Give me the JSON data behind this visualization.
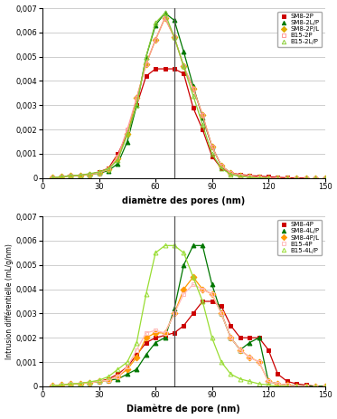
{
  "top": {
    "xlabel": "diamètre des pores (nm)",
    "vline_x": 70,
    "ylim": [
      0,
      0.007
    ],
    "xlim": [
      0,
      150
    ],
    "yticks": [
      0,
      0.001,
      0.002,
      0.003,
      0.004,
      0.005,
      0.006,
      0.007
    ],
    "xticks": [
      0,
      30,
      60,
      90,
      120,
      150
    ],
    "series": [
      {
        "label": "SM8-2P",
        "color": "#cc0000",
        "marker": "s",
        "markersize": 3.5,
        "fillstyle": "full",
        "pts_x": [
          5,
          10,
          15,
          20,
          25,
          30,
          35,
          40,
          45,
          50,
          55,
          60,
          65,
          70,
          75,
          80,
          85,
          90,
          95,
          100,
          105,
          110,
          115,
          120,
          125,
          130,
          135,
          140,
          145,
          150
        ],
        "pts_y": [
          2e-05,
          5e-05,
          0.0001,
          0.00012,
          0.00015,
          0.00025,
          0.0004,
          0.001,
          0.0018,
          0.003,
          0.0042,
          0.0045,
          0.0045,
          0.0045,
          0.0043,
          0.0029,
          0.002,
          0.0009,
          0.0004,
          0.0002,
          0.00015,
          0.0001,
          8e-05,
          5e-05,
          3e-05,
          1e-05,
          0,
          0,
          0,
          0
        ]
      },
      {
        "label": "SM8-2L/P",
        "color": "#007700",
        "marker": "^",
        "markersize": 3.5,
        "fillstyle": "full",
        "pts_x": [
          5,
          10,
          15,
          20,
          25,
          30,
          35,
          40,
          45,
          50,
          55,
          60,
          65,
          70,
          75,
          80,
          85,
          90,
          95,
          100,
          105,
          110,
          115,
          120,
          125,
          130,
          135,
          140,
          145,
          150
        ],
        "pts_y": [
          2e-05,
          5e-05,
          0.0001,
          0.00012,
          0.00015,
          0.0002,
          0.0003,
          0.0006,
          0.0015,
          0.003,
          0.005,
          0.0063,
          0.0068,
          0.0065,
          0.0052,
          0.0038,
          0.0025,
          0.0013,
          0.0005,
          0.0002,
          0.0001,
          5e-05,
          2e-05,
          0,
          0,
          0,
          0,
          0,
          0,
          0
        ]
      },
      {
        "label": "SM8-2P/L",
        "color": "#ddaa00",
        "marker": "D",
        "markersize": 3.5,
        "fillstyle": "full",
        "pts_x": [
          5,
          10,
          15,
          20,
          25,
          30,
          35,
          40,
          45,
          50,
          55,
          60,
          65,
          70,
          75,
          80,
          85,
          90,
          95,
          100,
          105,
          110,
          115,
          120,
          125,
          130,
          135,
          140,
          145,
          150
        ],
        "pts_y": [
          2e-05,
          5e-05,
          0.0001,
          0.00012,
          0.00015,
          0.00022,
          0.00035,
          0.0008,
          0.0018,
          0.0033,
          0.0047,
          0.0057,
          0.0066,
          0.0058,
          0.0046,
          0.0037,
          0.0026,
          0.0013,
          0.0005,
          0.0002,
          0.00012,
          7e-05,
          3e-05,
          0,
          0,
          0,
          0,
          0,
          0,
          0
        ]
      },
      {
        "label": "B15-2P",
        "color": "#ff9999",
        "marker": "s",
        "markersize": 3.5,
        "fillstyle": "none",
        "pts_x": [
          5,
          10,
          15,
          20,
          25,
          30,
          35,
          40,
          45,
          50,
          55,
          60,
          65,
          70,
          75,
          80,
          85,
          90,
          95,
          100,
          105,
          110,
          115,
          120,
          125,
          130,
          135,
          140,
          145,
          150
        ],
        "pts_y": [
          2e-05,
          5e-05,
          0.0001,
          0.00012,
          0.00015,
          0.00022,
          0.00035,
          0.0009,
          0.002,
          0.0033,
          0.0047,
          0.0057,
          0.0066,
          0.0058,
          0.0046,
          0.0037,
          0.0026,
          0.0013,
          0.0005,
          0.0002,
          0.00012,
          7e-05,
          3e-05,
          0,
          0,
          0,
          0,
          0,
          0,
          0
        ]
      },
      {
        "label": "B15-2L/P",
        "color": "#88cc33",
        "marker": "^",
        "markersize": 3.5,
        "fillstyle": "none",
        "pts_x": [
          5,
          10,
          15,
          20,
          25,
          30,
          35,
          40,
          45,
          50,
          55,
          60,
          65,
          70,
          75,
          80,
          85,
          90,
          95,
          100,
          105,
          110,
          115,
          120,
          125,
          130,
          135,
          140,
          145,
          150
        ],
        "pts_y": [
          2e-05,
          5e-05,
          0.0001,
          0.00012,
          0.00018,
          0.00025,
          0.00038,
          0.00075,
          0.0018,
          0.003,
          0.005,
          0.0064,
          0.0068,
          0.0058,
          0.0046,
          0.0034,
          0.0022,
          0.001,
          0.0004,
          0.00015,
          7e-05,
          3e-05,
          0,
          0,
          0,
          0,
          0,
          0,
          0,
          0
        ]
      }
    ]
  },
  "bottom": {
    "xlabel": "Diamètre de pore (nm)",
    "ylabel": "Intrusion différentielle (mL/g/nm)",
    "vline_x": 70,
    "ylim": [
      0,
      0.007
    ],
    "xlim": [
      0,
      150
    ],
    "yticks": [
      0,
      0.001,
      0.002,
      0.003,
      0.004,
      0.005,
      0.006,
      0.007
    ],
    "xticks": [
      0,
      30,
      60,
      90,
      120,
      150
    ],
    "series": [
      {
        "label": "SM8-4P",
        "color": "#cc0000",
        "marker": "s",
        "markersize": 3.5,
        "fillstyle": "full",
        "pts_x": [
          5,
          10,
          15,
          20,
          25,
          30,
          35,
          40,
          45,
          50,
          55,
          60,
          65,
          70,
          75,
          80,
          85,
          90,
          95,
          100,
          105,
          110,
          115,
          120,
          125,
          130,
          135,
          140,
          145,
          150
        ],
        "pts_y": [
          2e-05,
          5e-05,
          0.0001,
          0.00012,
          0.00015,
          0.0002,
          0.0003,
          0.0005,
          0.0008,
          0.0013,
          0.0018,
          0.002,
          0.0021,
          0.0022,
          0.0025,
          0.003,
          0.0035,
          0.0035,
          0.0033,
          0.0025,
          0.002,
          0.002,
          0.002,
          0.0015,
          0.0005,
          0.0002,
          0.0001,
          5e-05,
          0,
          0
        ]
      },
      {
        "label": "SM8-4L/P",
        "color": "#007700",
        "marker": "^",
        "markersize": 3.5,
        "fillstyle": "full",
        "pts_x": [
          5,
          10,
          15,
          20,
          25,
          30,
          35,
          40,
          45,
          50,
          55,
          60,
          65,
          70,
          75,
          80,
          85,
          90,
          95,
          100,
          105,
          110,
          115,
          120,
          125,
          130,
          135,
          140,
          145,
          150
        ],
        "pts_y": [
          2e-05,
          5e-05,
          0.0001,
          0.00012,
          0.00015,
          0.0002,
          0.00025,
          0.0003,
          0.0005,
          0.0007,
          0.0013,
          0.0018,
          0.002,
          0.0032,
          0.005,
          0.0058,
          0.0058,
          0.0042,
          0.003,
          0.002,
          0.0015,
          0.0018,
          0.002,
          0.0002,
          0.0001,
          5e-05,
          2e-05,
          1e-05,
          0,
          0
        ]
      },
      {
        "label": "SM8-4P/L",
        "color": "#ff9900",
        "marker": "D",
        "markersize": 3.5,
        "fillstyle": "full",
        "pts_x": [
          5,
          10,
          15,
          20,
          25,
          30,
          35,
          40,
          45,
          50,
          55,
          60,
          65,
          70,
          75,
          80,
          85,
          90,
          95,
          100,
          105,
          110,
          115,
          120,
          125,
          130,
          135,
          140,
          145,
          150
        ],
        "pts_y": [
          2e-05,
          5e-05,
          0.0001,
          0.00012,
          0.00015,
          0.0002,
          0.00025,
          0.0004,
          0.0007,
          0.0012,
          0.002,
          0.0022,
          0.0022,
          0.003,
          0.004,
          0.0045,
          0.004,
          0.0038,
          0.003,
          0.002,
          0.0015,
          0.0012,
          0.001,
          0.0002,
          0.0001,
          5e-05,
          0,
          0,
          0,
          0
        ]
      },
      {
        "label": "B15-4P",
        "color": "#ffbbbb",
        "marker": "s",
        "markersize": 3.5,
        "fillstyle": "none",
        "pts_x": [
          5,
          10,
          15,
          20,
          25,
          30,
          35,
          40,
          45,
          50,
          55,
          60,
          65,
          70,
          75,
          80,
          85,
          90,
          95,
          100,
          105,
          110,
          115,
          120,
          125,
          130,
          135,
          140,
          145,
          150
        ],
        "pts_y": [
          2e-05,
          5e-05,
          0.0001,
          0.00012,
          0.00015,
          0.0002,
          0.00025,
          0.0004,
          0.0008,
          0.0015,
          0.0022,
          0.0023,
          0.0022,
          0.003,
          0.0038,
          0.0042,
          0.004,
          0.0038,
          0.003,
          0.002,
          0.0015,
          0.0012,
          0.001,
          0.0002,
          0.0001,
          5e-05,
          0,
          0,
          0,
          0
        ]
      },
      {
        "label": "B15-4L/P",
        "color": "#99dd33",
        "marker": "^",
        "markersize": 3.5,
        "fillstyle": "none",
        "pts_x": [
          5,
          10,
          15,
          20,
          25,
          30,
          35,
          40,
          45,
          50,
          55,
          60,
          65,
          70,
          75,
          80,
          85,
          90,
          95,
          100,
          105,
          110,
          115,
          120,
          125,
          130,
          135,
          140,
          145,
          150
        ],
        "pts_y": [
          2e-05,
          5e-05,
          0.0001,
          0.00012,
          0.00018,
          0.00025,
          0.0004,
          0.0007,
          0.001,
          0.0018,
          0.0038,
          0.0055,
          0.0058,
          0.0058,
          0.0055,
          0.0045,
          0.0035,
          0.002,
          0.001,
          0.0005,
          0.0003,
          0.0002,
          0.0001,
          5e-05,
          0,
          0,
          0,
          0,
          0,
          0
        ]
      }
    ]
  },
  "background_color": "#ffffff",
  "grid_color": "#bbbbbb"
}
